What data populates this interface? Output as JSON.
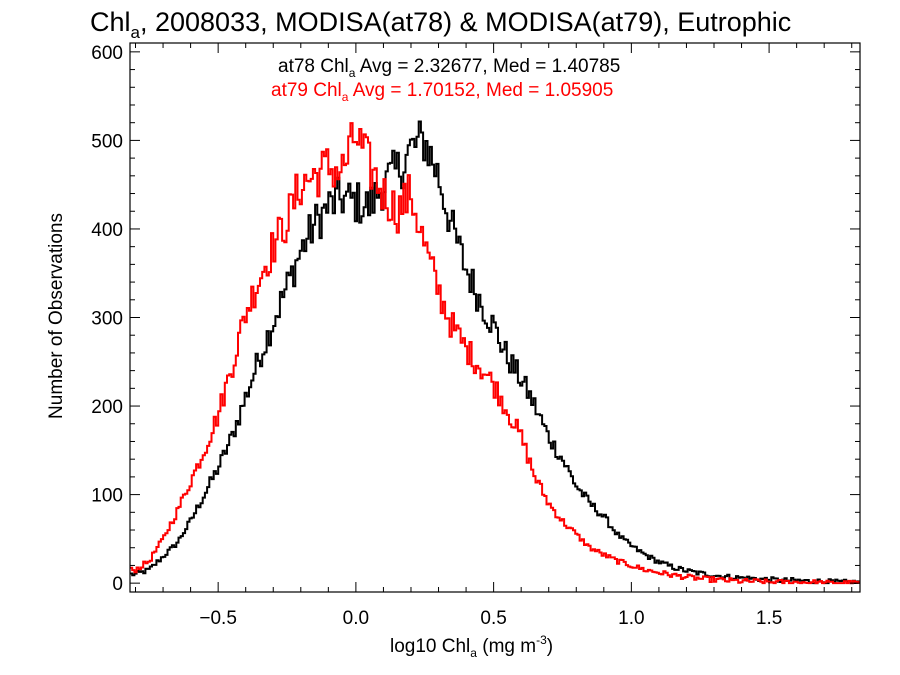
{
  "chart_data": {
    "type": "line",
    "title_main": "Chl",
    "title_sub": "a",
    "title_rest": ", 2008033, MODISA(at78) & MODISA(at79), Eutrophic",
    "xlabel_main": "log10 Chl",
    "xlabel_sub": "a",
    "xlabel_mid": " (mg m",
    "xlabel_sup": "-3",
    "xlabel_end": ")",
    "ylabel": "Number of Observations",
    "xlim": [
      -0.82,
      1.83
    ],
    "ylim": [
      -10,
      610
    ],
    "xticks": [
      -0.5,
      0.0,
      0.5,
      1.0,
      1.5
    ],
    "xtick_labels": [
      "−0.5",
      "0.0",
      "0.5",
      "1.0",
      "1.5"
    ],
    "yticks": [
      0,
      100,
      200,
      300,
      400,
      500,
      600
    ],
    "ytick_labels": [
      "0",
      "100",
      "200",
      "300",
      "400",
      "500",
      "600"
    ],
    "x_minor_step": 0.1,
    "y_minor_step": 20,
    "grid": false,
    "legend_position": "top-center",
    "series": [
      {
        "name": "at78",
        "color": "#000000",
        "stats_prefix": "at78 Chl",
        "stats_sub": "a",
        "stats_rest": " Avg = 2.32677, Med = 1.40785",
        "x": [
          -0.8,
          -0.75,
          -0.7,
          -0.65,
          -0.6,
          -0.55,
          -0.5,
          -0.45,
          -0.4,
          -0.35,
          -0.3,
          -0.25,
          -0.2,
          -0.15,
          -0.1,
          -0.05,
          0.0,
          0.05,
          0.1,
          0.15,
          0.2,
          0.25,
          0.3,
          0.35,
          0.4,
          0.45,
          0.5,
          0.55,
          0.6,
          0.65,
          0.7,
          0.75,
          0.8,
          0.85,
          0.9,
          0.95,
          1.0,
          1.05,
          1.1,
          1.15,
          1.2,
          1.25,
          1.3,
          1.35,
          1.4,
          1.45,
          1.5,
          1.55,
          1.6,
          1.65,
          1.7,
          1.75,
          1.8
        ],
        "y": [
          10,
          15,
          30,
          45,
          70,
          100,
          130,
          165,
          210,
          255,
          295,
          335,
          375,
          405,
          425,
          435,
          430,
          425,
          450,
          465,
          490,
          500,
          460,
          400,
          355,
          320,
          290,
          255,
          230,
          200,
          165,
          140,
          110,
          90,
          75,
          55,
          42,
          32,
          24,
          18,
          14,
          11,
          9,
          7,
          6,
          5,
          4,
          3,
          3,
          2,
          2,
          1,
          1
        ]
      },
      {
        "name": "at79",
        "color": "#ff0000",
        "stats_prefix": "at79 Chl",
        "stats_sub": "a",
        "stats_rest": " Avg = 1.70152, Med = 1.05905",
        "x": [
          -0.8,
          -0.75,
          -0.7,
          -0.65,
          -0.6,
          -0.55,
          -0.5,
          -0.45,
          -0.4,
          -0.35,
          -0.3,
          -0.25,
          -0.2,
          -0.15,
          -0.1,
          -0.05,
          0.0,
          0.05,
          0.1,
          0.15,
          0.2,
          0.25,
          0.3,
          0.35,
          0.4,
          0.45,
          0.5,
          0.55,
          0.6,
          0.65,
          0.7,
          0.75,
          0.8,
          0.85,
          0.9,
          0.95,
          1.0,
          1.05,
          1.1,
          1.15,
          1.2,
          1.25,
          1.3,
          1.35,
          1.4,
          1.45,
          1.5,
          1.55,
          1.6,
          1.65,
          1.7,
          1.75,
          1.8
        ],
        "y": [
          15,
          25,
          50,
          80,
          115,
          150,
          190,
          245,
          305,
          345,
          380,
          410,
          450,
          460,
          470,
          465,
          505,
          470,
          440,
          420,
          440,
          380,
          330,
          290,
          265,
          245,
          225,
          195,
          165,
          120,
          90,
          70,
          55,
          40,
          32,
          25,
          20,
          15,
          12,
          9,
          7,
          5,
          4,
          3,
          2,
          2,
          1,
          1,
          1,
          1,
          0,
          0,
          0
        ]
      }
    ]
  }
}
